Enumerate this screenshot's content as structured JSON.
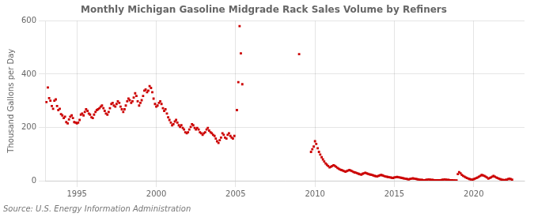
{
  "chart_data": {
    "type": "scatter",
    "title": "Monthly Michigan Gasoline Midgrade Rack Sales Volume by Refiners",
    "ylabel": "Thousand Gallons per Day",
    "source": "Source: U.S. Energy Information Administration",
    "color": "#cc0000",
    "marker": "square",
    "grid": true,
    "xlim": [
      1993.0,
      2023.2
    ],
    "xticks": [
      1995,
      2000,
      2005,
      2010,
      2015,
      2020
    ],
    "ylim": [
      0,
      600
    ],
    "yticks": [
      0,
      200,
      400,
      600
    ],
    "x": [
      1993.08,
      1993.17,
      1993.25,
      1993.33,
      1993.42,
      1993.5,
      1993.58,
      1993.67,
      1993.75,
      1993.83,
      1993.92,
      1994.0,
      1994.08,
      1994.17,
      1994.25,
      1994.33,
      1994.42,
      1994.5,
      1994.58,
      1994.67,
      1994.75,
      1994.83,
      1994.92,
      1995.0,
      1995.08,
      1995.17,
      1995.25,
      1995.33,
      1995.42,
      1995.5,
      1995.58,
      1995.67,
      1995.75,
      1995.83,
      1995.92,
      1996.0,
      1996.08,
      1996.17,
      1996.25,
      1996.33,
      1996.42,
      1996.5,
      1996.58,
      1996.67,
      1996.75,
      1996.83,
      1996.92,
      1997.0,
      1997.08,
      1997.17,
      1997.25,
      1997.33,
      1997.42,
      1997.5,
      1997.58,
      1997.67,
      1997.75,
      1997.83,
      1997.92,
      1998.0,
      1998.08,
      1998.17,
      1998.25,
      1998.33,
      1998.42,
      1998.5,
      1998.58,
      1998.67,
      1998.75,
      1998.83,
      1998.92,
      1999.0,
      1999.08,
      1999.17,
      1999.25,
      1999.33,
      1999.42,
      1999.5,
      1999.58,
      1999.67,
      1999.75,
      1999.83,
      1999.92,
      2000.0,
      2000.08,
      2000.17,
      2000.25,
      2000.33,
      2000.42,
      2000.5,
      2000.58,
      2000.67,
      2000.75,
      2000.83,
      2000.92,
      2001.0,
      2001.08,
      2001.17,
      2001.25,
      2001.33,
      2001.42,
      2001.5,
      2001.58,
      2001.67,
      2001.75,
      2001.83,
      2001.92,
      2002.0,
      2002.08,
      2002.17,
      2002.25,
      2002.33,
      2002.42,
      2002.5,
      2002.58,
      2002.67,
      2002.75,
      2002.83,
      2002.92,
      2003.0,
      2003.08,
      2003.17,
      2003.25,
      2003.33,
      2003.42,
      2003.5,
      2003.58,
      2003.67,
      2003.75,
      2003.83,
      2003.92,
      2004.0,
      2004.08,
      2004.17,
      2004.25,
      2004.33,
      2004.42,
      2004.5,
      2004.58,
      2004.67,
      2004.75,
      2004.83,
      2004.92,
      2005.08,
      2005.17,
      2005.25,
      2005.33,
      2005.42,
      2009.0,
      2009.75,
      2009.83,
      2009.92,
      2010.0,
      2010.08,
      2010.17,
      2010.25,
      2010.33,
      2010.42,
      2010.5,
      2010.58,
      2010.67,
      2010.75,
      2010.83,
      2010.92,
      2011.0,
      2011.08,
      2011.17,
      2011.25,
      2011.33,
      2011.42,
      2011.5,
      2011.58,
      2011.67,
      2011.75,
      2011.83,
      2011.92,
      2012.0,
      2012.08,
      2012.17,
      2012.25,
      2012.33,
      2012.42,
      2012.5,
      2012.58,
      2012.67,
      2012.75,
      2012.83,
      2012.92,
      2013.0,
      2013.08,
      2013.17,
      2013.25,
      2013.33,
      2013.42,
      2013.5,
      2013.58,
      2013.67,
      2013.75,
      2013.83,
      2013.92,
      2014.0,
      2014.08,
      2014.17,
      2014.25,
      2014.33,
      2014.42,
      2014.5,
      2014.58,
      2014.67,
      2014.75,
      2014.83,
      2014.92,
      2015.0,
      2015.08,
      2015.17,
      2015.25,
      2015.33,
      2015.42,
      2015.5,
      2015.58,
      2015.67,
      2015.75,
      2015.83,
      2015.92,
      2016.0,
      2016.08,
      2016.17,
      2016.25,
      2016.33,
      2016.42,
      2016.5,
      2016.58,
      2016.67,
      2016.75,
      2016.83,
      2016.92,
      2017.0,
      2017.08,
      2017.17,
      2017.25,
      2017.33,
      2017.42,
      2017.5,
      2017.58,
      2017.67,
      2017.75,
      2017.83,
      2017.92,
      2018.0,
      2018.08,
      2018.17,
      2018.25,
      2018.33,
      2018.42,
      2018.5,
      2018.58,
      2018.67,
      2018.75,
      2018.83,
      2018.92,
      2019.0,
      2019.08,
      2019.17,
      2019.25,
      2019.33,
      2019.42,
      2019.5,
      2019.58,
      2019.67,
      2019.75,
      2019.83,
      2019.92,
      2020.0,
      2020.08,
      2020.17,
      2020.25,
      2020.33,
      2020.42,
      2020.5,
      2020.58,
      2020.67,
      2020.75,
      2020.83,
      2020.92,
      2021.0,
      2021.08,
      2021.17,
      2021.25,
      2021.33,
      2021.42,
      2021.5,
      2021.58,
      2021.67,
      2021.75,
      2021.83,
      2021.92,
      2022.0,
      2022.08,
      2022.17,
      2022.25,
      2022.33,
      2022.42
    ],
    "values": [
      295,
      350,
      310,
      300,
      280,
      270,
      300,
      305,
      280,
      265,
      270,
      250,
      245,
      235,
      240,
      220,
      215,
      230,
      240,
      245,
      235,
      220,
      218,
      215,
      218,
      228,
      248,
      252,
      245,
      258,
      268,
      262,
      252,
      248,
      238,
      235,
      248,
      258,
      265,
      268,
      272,
      278,
      282,
      272,
      262,
      252,
      248,
      258,
      272,
      288,
      292,
      282,
      278,
      288,
      298,
      292,
      278,
      268,
      258,
      268,
      282,
      298,
      308,
      302,
      292,
      298,
      312,
      328,
      318,
      298,
      282,
      292,
      302,
      318,
      338,
      342,
      332,
      338,
      355,
      348,
      332,
      308,
      288,
      278,
      282,
      292,
      298,
      288,
      272,
      262,
      268,
      252,
      238,
      228,
      218,
      208,
      212,
      222,
      228,
      218,
      208,
      202,
      208,
      198,
      192,
      182,
      178,
      182,
      192,
      202,
      212,
      208,
      198,
      192,
      198,
      192,
      182,
      178,
      172,
      178,
      182,
      192,
      198,
      188,
      182,
      178,
      172,
      168,
      158,
      148,
      142,
      152,
      162,
      178,
      172,
      162,
      158,
      172,
      178,
      168,
      162,
      158,
      168,
      265,
      370,
      580,
      478,
      362,
      475,
      108,
      118,
      128,
      148,
      138,
      122,
      108,
      98,
      88,
      80,
      72,
      65,
      60,
      55,
      50,
      52,
      55,
      58,
      56,
      52,
      48,
      45,
      42,
      40,
      38,
      36,
      34,
      36,
      38,
      40,
      38,
      36,
      33,
      31,
      30,
      28,
      26,
      24,
      23,
      26,
      28,
      30,
      28,
      26,
      24,
      23,
      22,
      20,
      18,
      17,
      16,
      18,
      20,
      22,
      20,
      18,
      16,
      15,
      14,
      13,
      12,
      11,
      10,
      12,
      13,
      14,
      13,
      12,
      11,
      10,
      9,
      8,
      7,
      6,
      5,
      7,
      8,
      9,
      8,
      7,
      6,
      5,
      4,
      3,
      3,
      2,
      2,
      3,
      4,
      5,
      4,
      3,
      3,
      2,
      2,
      2,
      2,
      2,
      2,
      3,
      4,
      5,
      4,
      3,
      3,
      2,
      2,
      2,
      1,
      1,
      1,
      25,
      32,
      28,
      22,
      18,
      15,
      12,
      10,
      8,
      6,
      5,
      4,
      6,
      8,
      10,
      12,
      15,
      18,
      22,
      20,
      18,
      15,
      12,
      8,
      10,
      12,
      15,
      18,
      15,
      12,
      10,
      8,
      6,
      4,
      3,
      2,
      3,
      4,
      6,
      8,
      6,
      4
    ]
  }
}
